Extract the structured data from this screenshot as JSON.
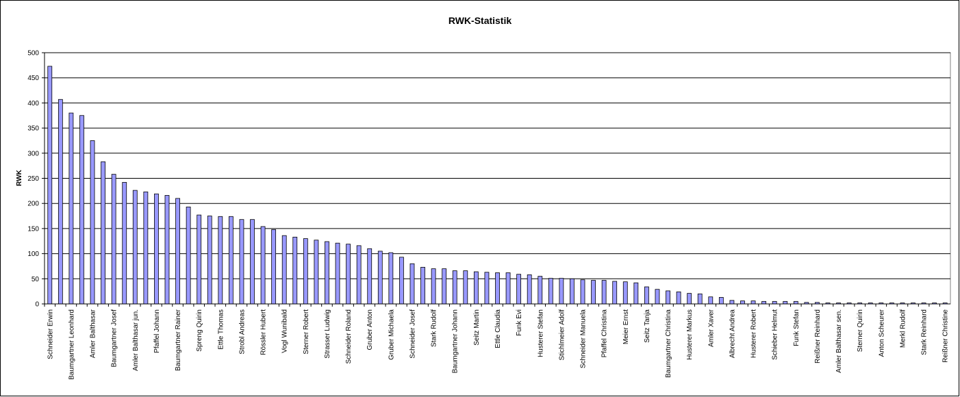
{
  "chart_data": {
    "type": "bar",
    "title": "RWK-Statistik",
    "y_label": "RWK",
    "categories": [
      "Schneider Erwin",
      null,
      "Baumgartner Leonhard",
      null,
      "Amler Balthasar",
      null,
      "Baumgartner Josef",
      null,
      "Amler Balthasar jun.",
      null,
      "Pfaffel Johann",
      null,
      "Baumgartner Rainer",
      null,
      "Spreng Quirin",
      null,
      "Ettle Thomas",
      null,
      "Strobl Andreas",
      null,
      "Rössler Hubert",
      null,
      "Vogl Wunibald",
      null,
      "Sterner Robert",
      null,
      "Strasser Ludwig",
      null,
      "Schneider Roland",
      null,
      "Gruber Anton",
      null,
      "Gruber Michaela",
      null,
      "Schneider Josef",
      null,
      "Stark Rudolf",
      null,
      "Baumgartner Johann",
      null,
      "Seitz Martin",
      null,
      "Ettle Claudia",
      null,
      "Funk Evi",
      null,
      "Husterer Stefan",
      null,
      "Stichlmeier Adolf",
      null,
      "Schneider Manuela",
      null,
      "Pfaffel Christina",
      null,
      "Meier Ernst",
      null,
      "Seitz Tanja",
      null,
      "Baumgartner Christina",
      null,
      "Husterer Markus",
      null,
      "Amler Xaver",
      null,
      "Albrecht Andrea",
      null,
      "Husterer Robert",
      null,
      "Schieber Helmut",
      null,
      "Funk Stefan",
      null,
      "Reißner Reinhard",
      null,
      "Amler Balthasar sen.",
      null,
      "Sterner Quirin",
      null,
      "Anton Scheurer",
      null,
      "Merkl Rudolf",
      null,
      "Stark Reinhard",
      null,
      "Reißner Christine"
    ],
    "values": [
      473,
      407,
      380,
      375,
      325,
      283,
      258,
      242,
      226,
      223,
      219,
      216,
      210,
      193,
      177,
      175,
      174,
      174,
      168,
      168,
      154,
      148,
      136,
      133,
      130,
      127,
      124,
      121,
      119,
      116,
      110,
      105,
      102,
      93,
      80,
      73,
      70,
      70,
      66,
      66,
      64,
      63,
      62,
      62,
      59,
      58,
      55,
      51,
      51,
      50,
      48,
      47,
      47,
      45,
      44,
      42,
      34,
      29,
      26,
      24,
      21,
      20,
      14,
      13,
      7,
      6,
      6,
      5,
      5,
      5,
      5,
      3,
      3,
      2,
      2,
      2,
      2,
      2,
      2,
      2,
      2,
      2,
      2,
      2,
      2
    ],
    "color": "#9999ff",
    "ylim": [
      0,
      500
    ],
    "yticks": [
      0,
      50,
      100,
      150,
      200,
      250,
      300,
      350,
      400,
      450,
      500
    ],
    "grid": true
  }
}
